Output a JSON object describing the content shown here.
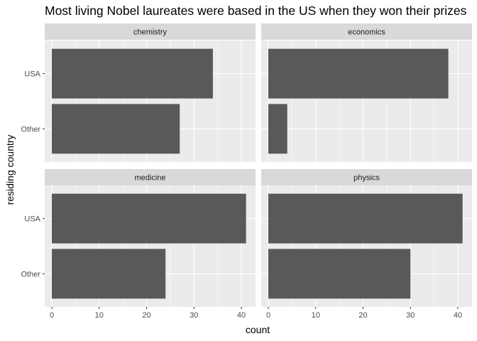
{
  "chart_data": {
    "type": "bar",
    "orientation": "horizontal",
    "title": "Most living Nobel laureates were based in the US when they won their prizes",
    "xlabel": "count",
    "ylabel": "residing country",
    "xlim": [
      -1.5,
      43
    ],
    "x_ticks": [
      0,
      10,
      20,
      30,
      40
    ],
    "categories": [
      "USA",
      "Other"
    ],
    "grid": true,
    "colors": {
      "bar": "#595959",
      "panel": "#ebebeb",
      "strip": "#d9d9d9",
      "grid": "#ffffff"
    },
    "facets": [
      {
        "label": "chemistry",
        "values": [
          34,
          27
        ]
      },
      {
        "label": "economics",
        "values": [
          38,
          4
        ]
      },
      {
        "label": "medicine",
        "values": [
          41,
          24
        ]
      },
      {
        "label": "physics",
        "values": [
          41,
          30
        ]
      }
    ]
  }
}
